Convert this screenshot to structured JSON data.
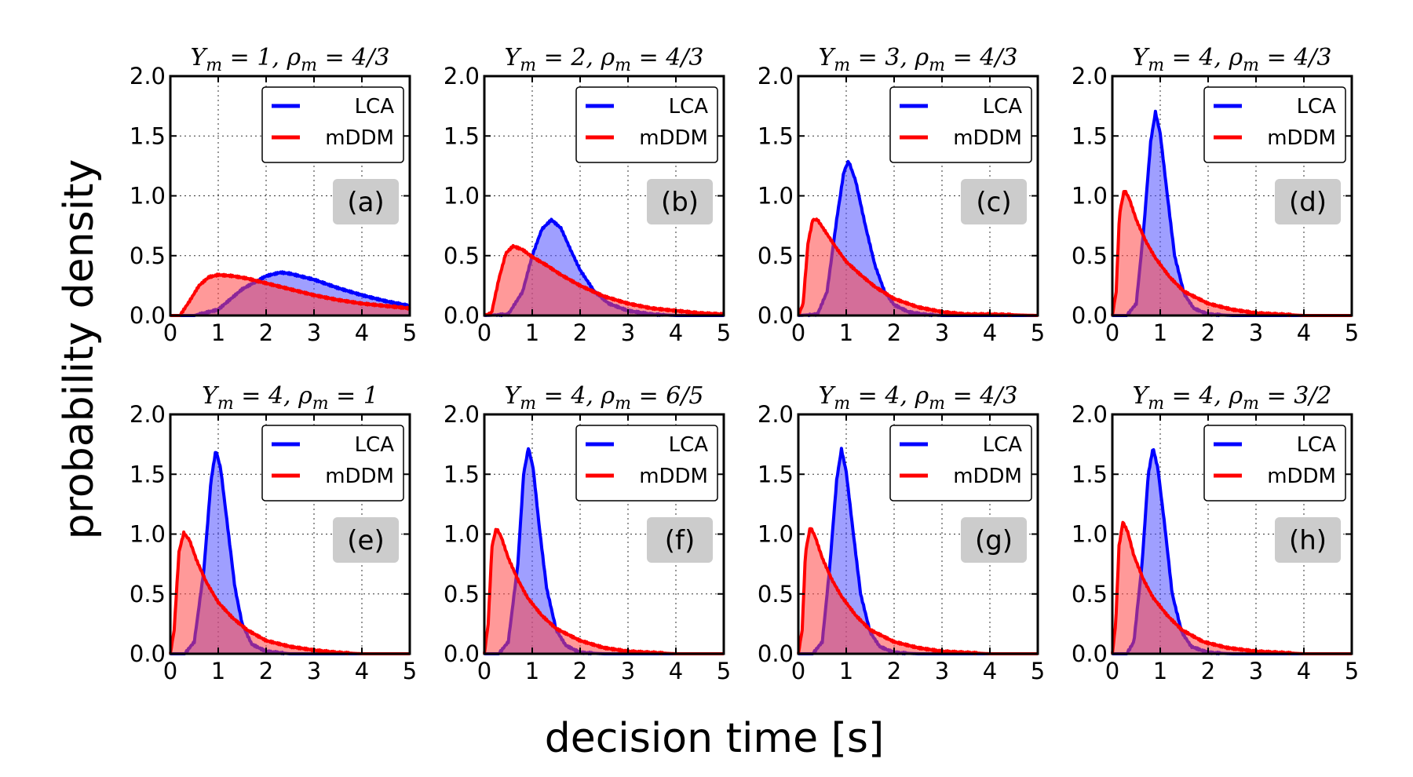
{
  "figure": {
    "xlabel": "decision time [s]",
    "ylabel": "probability density"
  },
  "chart_data": [
    {
      "type": "area",
      "title": "Υ_m = 1, ρ_m = 4/3",
      "panel_label": "(a)",
      "xlim": [
        0,
        5
      ],
      "ylim": [
        0,
        2.0
      ],
      "x_ticks": [
        0,
        1,
        2,
        3,
        4,
        5
      ],
      "y_ticks": [
        0.0,
        0.5,
        1.0,
        1.5,
        2.0
      ],
      "grid": true,
      "legend_position": "top-right",
      "series": [
        {
          "name": "LCA",
          "color": "#0000ff",
          "x": [
            0,
            0.5,
            1.0,
            1.5,
            2.0,
            2.3,
            2.5,
            3.0,
            3.5,
            4.0,
            4.5,
            5.0
          ],
          "y": [
            0,
            0.0,
            0.05,
            0.22,
            0.33,
            0.36,
            0.35,
            0.3,
            0.23,
            0.17,
            0.12,
            0.08
          ]
        },
        {
          "name": "mDDM",
          "color": "#ff0000",
          "x": [
            0.0,
            0.2,
            0.4,
            0.6,
            0.8,
            1.0,
            1.3,
            1.6,
            2.0,
            2.5,
            3.0,
            3.5,
            4.0,
            4.5,
            5.0
          ],
          "y": [
            0,
            0.0,
            0.12,
            0.25,
            0.32,
            0.34,
            0.33,
            0.31,
            0.27,
            0.22,
            0.17,
            0.13,
            0.1,
            0.08,
            0.06
          ]
        }
      ]
    },
    {
      "type": "area",
      "title": "Υ_m = 2, ρ_m = 4/3",
      "panel_label": "(b)",
      "xlim": [
        0,
        5
      ],
      "ylim": [
        0,
        2.0
      ],
      "x_ticks": [
        0,
        1,
        2,
        3,
        4,
        5
      ],
      "y_ticks": [
        0.0,
        0.5,
        1.0,
        1.5,
        2.0
      ],
      "grid": true,
      "legend_position": "top-right",
      "series": [
        {
          "name": "LCA",
          "color": "#0000ff",
          "x": [
            0,
            0.5,
            0.8,
            1.0,
            1.2,
            1.4,
            1.6,
            1.8,
            2.0,
            2.3,
            2.6,
            3.0,
            3.5,
            4.0,
            5.0
          ],
          "y": [
            0,
            0.01,
            0.2,
            0.5,
            0.72,
            0.8,
            0.73,
            0.55,
            0.38,
            0.2,
            0.1,
            0.04,
            0.01,
            0,
            0
          ]
        },
        {
          "name": "mDDM",
          "color": "#ff0000",
          "x": [
            0.0,
            0.15,
            0.3,
            0.45,
            0.6,
            0.8,
            1.0,
            1.3,
            1.6,
            2.0,
            2.5,
            3.0,
            3.5,
            4.0,
            4.5,
            5.0
          ],
          "y": [
            0,
            0.02,
            0.3,
            0.52,
            0.58,
            0.55,
            0.49,
            0.42,
            0.34,
            0.25,
            0.16,
            0.1,
            0.06,
            0.04,
            0.02,
            0.01
          ]
        }
      ]
    },
    {
      "type": "area",
      "title": "Υ_m = 3, ρ_m = 4/3",
      "panel_label": "(c)",
      "xlim": [
        0,
        5
      ],
      "ylim": [
        0,
        2.0
      ],
      "x_ticks": [
        0,
        1,
        2,
        3,
        4,
        5
      ],
      "y_ticks": [
        0.0,
        0.5,
        1.0,
        1.5,
        2.0
      ],
      "grid": true,
      "legend_position": "top-right",
      "series": [
        {
          "name": "LCA",
          "color": "#0000ff",
          "x": [
            0,
            0.4,
            0.6,
            0.8,
            0.95,
            1.05,
            1.2,
            1.4,
            1.6,
            1.8,
            2.0,
            2.3,
            2.6,
            3.0,
            5.0
          ],
          "y": [
            0,
            0.01,
            0.2,
            0.8,
            1.2,
            1.29,
            1.12,
            0.75,
            0.42,
            0.2,
            0.09,
            0.03,
            0.01,
            0,
            0
          ]
        },
        {
          "name": "mDDM",
          "color": "#ff0000",
          "x": [
            0.0,
            0.1,
            0.2,
            0.3,
            0.4,
            0.6,
            0.8,
            1.0,
            1.3,
            1.6,
            2.0,
            2.5,
            3.0,
            3.5,
            4.0,
            5.0
          ],
          "y": [
            0,
            0.1,
            0.6,
            0.8,
            0.8,
            0.68,
            0.56,
            0.45,
            0.34,
            0.24,
            0.14,
            0.07,
            0.03,
            0.01,
            0.01,
            0
          ]
        }
      ]
    },
    {
      "type": "area",
      "title": "Υ_m = 4, ρ_m = 4/3",
      "panel_label": "(d)",
      "xlim": [
        0,
        5
      ],
      "ylim": [
        0,
        2.0
      ],
      "x_ticks": [
        0,
        1,
        2,
        3,
        4,
        5
      ],
      "y_ticks": [
        0.0,
        0.5,
        1.0,
        1.5,
        2.0
      ],
      "grid": true,
      "legend_position": "top-right",
      "series": [
        {
          "name": "LCA",
          "color": "#0000ff",
          "x": [
            0,
            0.3,
            0.5,
            0.65,
            0.8,
            0.9,
            1.0,
            1.15,
            1.3,
            1.5,
            1.7,
            2.0,
            2.5,
            5.0
          ],
          "y": [
            0,
            0,
            0.1,
            0.7,
            1.45,
            1.7,
            1.52,
            1.0,
            0.5,
            0.18,
            0.06,
            0.01,
            0,
            0
          ]
        },
        {
          "name": "mDDM",
          "color": "#ff0000",
          "x": [
            0.0,
            0.08,
            0.15,
            0.25,
            0.35,
            0.5,
            0.7,
            0.9,
            1.2,
            1.5,
            2.0,
            2.5,
            3.0,
            3.5,
            4.0,
            5.0
          ],
          "y": [
            0,
            0.2,
            0.85,
            1.05,
            0.98,
            0.8,
            0.62,
            0.48,
            0.32,
            0.2,
            0.1,
            0.05,
            0.02,
            0.01,
            0,
            0
          ]
        }
      ]
    },
    {
      "type": "area",
      "title": "Υ_m = 4, ρ_m = 1",
      "panel_label": "(e)",
      "xlim": [
        0,
        5
      ],
      "ylim": [
        0,
        2.0
      ],
      "x_ticks": [
        0,
        1,
        2,
        3,
        4,
        5
      ],
      "y_ticks": [
        0.0,
        0.5,
        1.0,
        1.5,
        2.0
      ],
      "grid": true,
      "legend_position": "top-right",
      "series": [
        {
          "name": "LCA",
          "color": "#0000ff",
          "x": [
            0,
            0.3,
            0.5,
            0.7,
            0.85,
            0.95,
            1.05,
            1.2,
            1.35,
            1.5,
            1.7,
            2.0,
            2.5,
            5.0
          ],
          "y": [
            0,
            0,
            0.1,
            0.7,
            1.45,
            1.7,
            1.55,
            1.05,
            0.55,
            0.25,
            0.08,
            0.02,
            0,
            0
          ]
        },
        {
          "name": "mDDM",
          "color": "#ff0000",
          "x": [
            0.0,
            0.08,
            0.18,
            0.28,
            0.4,
            0.55,
            0.75,
            1.0,
            1.3,
            1.6,
            2.0,
            2.5,
            3.0,
            3.5,
            4.0,
            5.0
          ],
          "y": [
            0,
            0.2,
            0.85,
            1.01,
            0.95,
            0.78,
            0.6,
            0.43,
            0.3,
            0.2,
            0.11,
            0.06,
            0.03,
            0.01,
            0,
            0
          ]
        }
      ]
    },
    {
      "type": "area",
      "title": "Υ_m = 4, ρ_m = 6/5",
      "panel_label": "(f)",
      "xlim": [
        0,
        5
      ],
      "ylim": [
        0,
        2.0
      ],
      "x_ticks": [
        0,
        1,
        2,
        3,
        4,
        5
      ],
      "y_ticks": [
        0.0,
        0.5,
        1.0,
        1.5,
        2.0
      ],
      "grid": true,
      "legend_position": "top-right",
      "series": [
        {
          "name": "LCA",
          "color": "#0000ff",
          "x": [
            0,
            0.3,
            0.5,
            0.7,
            0.82,
            0.92,
            1.02,
            1.15,
            1.3,
            1.5,
            1.7,
            2.0,
            2.5,
            5.0
          ],
          "y": [
            0,
            0,
            0.1,
            0.75,
            1.5,
            1.72,
            1.55,
            1.05,
            0.55,
            0.2,
            0.07,
            0.01,
            0,
            0
          ]
        },
        {
          "name": "mDDM",
          "color": "#ff0000",
          "x": [
            0.0,
            0.08,
            0.16,
            0.25,
            0.35,
            0.5,
            0.7,
            0.9,
            1.2,
            1.5,
            2.0,
            2.5,
            3.0,
            3.5,
            4.0,
            5.0
          ],
          "y": [
            0,
            0.25,
            0.9,
            1.05,
            0.98,
            0.8,
            0.62,
            0.47,
            0.32,
            0.21,
            0.11,
            0.05,
            0.02,
            0.01,
            0,
            0
          ]
        }
      ]
    },
    {
      "type": "area",
      "title": "Υ_m = 4, ρ_m = 4/3",
      "panel_label": "(g)",
      "xlim": [
        0,
        5
      ],
      "ylim": [
        0,
        2.0
      ],
      "x_ticks": [
        0,
        1,
        2,
        3,
        4,
        5
      ],
      "y_ticks": [
        0.0,
        0.5,
        1.0,
        1.5,
        2.0
      ],
      "grid": true,
      "legend_position": "top-right",
      "series": [
        {
          "name": "LCA",
          "color": "#0000ff",
          "x": [
            0,
            0.3,
            0.5,
            0.65,
            0.8,
            0.9,
            1.0,
            1.15,
            1.3,
            1.5,
            1.7,
            2.0,
            2.5,
            5.0
          ],
          "y": [
            0,
            0,
            0.1,
            0.7,
            1.45,
            1.71,
            1.52,
            1.0,
            0.5,
            0.18,
            0.06,
            0.01,
            0,
            0
          ]
        },
        {
          "name": "mDDM",
          "color": "#ff0000",
          "x": [
            0.0,
            0.08,
            0.15,
            0.25,
            0.35,
            0.5,
            0.7,
            0.9,
            1.2,
            1.5,
            2.0,
            2.5,
            3.0,
            3.5,
            4.0,
            5.0
          ],
          "y": [
            0,
            0.2,
            0.85,
            1.06,
            0.98,
            0.8,
            0.62,
            0.48,
            0.32,
            0.2,
            0.1,
            0.05,
            0.02,
            0.01,
            0,
            0
          ]
        }
      ]
    },
    {
      "type": "area",
      "title": "Υ_m = 4, ρ_m = 3/2",
      "panel_label": "(h)",
      "xlim": [
        0,
        5
      ],
      "ylim": [
        0,
        2.0
      ],
      "x_ticks": [
        0,
        1,
        2,
        3,
        4,
        5
      ],
      "y_ticks": [
        0.0,
        0.5,
        1.0,
        1.5,
        2.0
      ],
      "grid": true,
      "legend_position": "top-right",
      "series": [
        {
          "name": "LCA",
          "color": "#0000ff",
          "x": [
            0,
            0.3,
            0.45,
            0.62,
            0.75,
            0.85,
            0.95,
            1.1,
            1.25,
            1.45,
            1.65,
            2.0,
            2.5,
            5.0
          ],
          "y": [
            0,
            0,
            0.1,
            0.75,
            1.5,
            1.72,
            1.55,
            1.05,
            0.5,
            0.18,
            0.06,
            0.01,
            0,
            0
          ]
        },
        {
          "name": "mDDM",
          "color": "#ff0000",
          "x": [
            0.0,
            0.07,
            0.14,
            0.22,
            0.32,
            0.45,
            0.65,
            0.85,
            1.15,
            1.45,
            1.9,
            2.4,
            3.0,
            3.5,
            4.0,
            5.0
          ],
          "y": [
            0,
            0.25,
            0.9,
            1.1,
            1.02,
            0.82,
            0.62,
            0.47,
            0.32,
            0.2,
            0.1,
            0.05,
            0.02,
            0.01,
            0,
            0
          ]
        }
      ]
    }
  ]
}
